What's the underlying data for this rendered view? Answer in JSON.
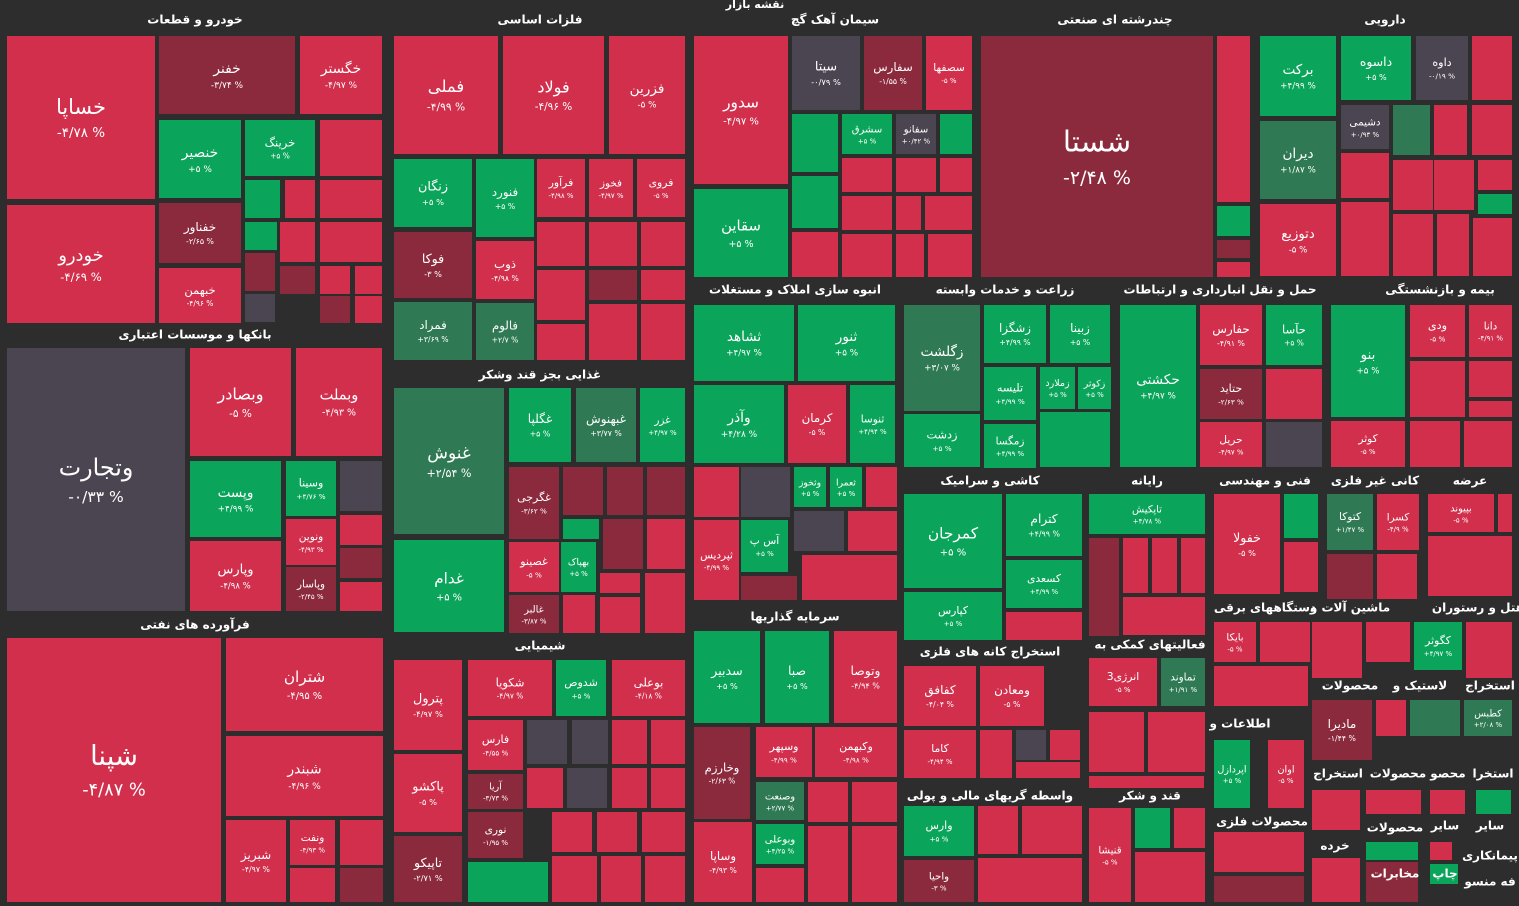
{
  "chart_data": {
    "type": "treemap",
    "title": "نقشه بازار",
    "groups": [
      {
        "name": "خودرو و قطعات",
        "labels": [
          "خساپا",
          "خودرو",
          "خفنر",
          "خگستر",
          "خنصیر",
          "خرینگ",
          "خفناور",
          "خبهمن"
        ],
        "values": [
          -4.78,
          -4.69,
          -3.74,
          -4.97,
          5,
          5,
          -2.65,
          -4.96
        ],
        "value_labels": [
          "-۴/۷۸ %",
          "-۴/۶۹ %",
          "-۳/۷۴ %",
          "-۴/۹۷ %",
          "+۵ %",
          "+۵ %",
          "-۲/۶۵ %",
          "-۴/۹۶ %"
        ]
      },
      {
        "name": "بانکها و موسسات اعتباری",
        "labels": [
          "وتجارت",
          "وبصادر",
          "وبملت",
          "وپست",
          "وسینا",
          "ونوین",
          "وپاسار",
          "وپارس"
        ],
        "values": [
          -0.33,
          -5,
          -4.93,
          4.99,
          4.76,
          -4.93,
          -2.45,
          -4.98
        ],
        "value_labels": [
          "-۰/۳۳ %",
          "-۵ %",
          "-۴/۹۳ %",
          "+۴/۹۹ %",
          "+۴/۷۶ %",
          "-۴/۹۳ %",
          "-۲/۴۵ %",
          "-۴/۹۸ %"
        ]
      },
      {
        "name": "فرآورده های نفتی",
        "labels": [
          "شپنا",
          "شتران",
          "شبندر",
          "شبریز",
          "ونفت"
        ],
        "values": [
          -4.87,
          -4.95,
          -4.96,
          -4.97,
          -4.93
        ],
        "value_labels": [
          "-۴/۸۷ %",
          "-۴/۹۵ %",
          "-۴/۹۶ %",
          "-۴/۹۷ %",
          "-۴/۹۳ %"
        ]
      },
      {
        "name": "فلزات اساسی",
        "labels": [
          "فملی",
          "فولاد",
          "فزرین",
          "زنگان",
          "فنورد",
          "فرآور",
          "فخوز",
          "فروی",
          "فوکا",
          "ذوب",
          "فمراد",
          "فالوم"
        ],
        "values": [
          -4.99,
          -4.96,
          -5,
          5,
          5,
          -4.98,
          -4.97,
          -5,
          -3,
          -4.98,
          3.69,
          2.7
        ],
        "value_labels": [
          "-۴/۹۹ %",
          "-۴/۹۶ %",
          "-۵ %",
          "+۵ %",
          "+۵ %",
          "-۴/۹۸ %",
          "-۴/۹۷ %",
          "-۵ %",
          "-۳ %",
          "-۴/۹۸ %",
          "+۳/۶۹ %",
          "+۲/۷ %"
        ]
      },
      {
        "name": "غذایی بجز قند وشکر",
        "labels": [
          "غنوش",
          "غدام",
          "غگلپا",
          "غبهنوش",
          "غزر",
          "غگرجی",
          "غصینو",
          "بهپاک",
          "غالبر"
        ],
        "values": [
          2.54,
          5,
          5,
          3.77,
          4.97,
          -3.62,
          -5,
          5,
          -3.87
        ],
        "value_labels": [
          "+۲/۵۴ %",
          "+۵ %",
          "+۵ %",
          "+۳/۷۷ %",
          "+۴/۹۷ %",
          "-۳/۶۲ %",
          "-۵ %",
          "+۵ %",
          "-۳/۸۷ %"
        ]
      },
      {
        "name": "شیمیایی",
        "labels": [
          "پترول",
          "پاکشو",
          "تاپیکو",
          "شکویا",
          "شدوص",
          "بوعلی",
          "فارس",
          "آریا",
          "نوری"
        ],
        "values": [
          -4.97,
          -5,
          -2.71,
          -4.97,
          5,
          -4.18,
          -4.55,
          -3.73,
          -1.95
        ],
        "value_labels": [
          "-۴/۹۷ %",
          "-۵ %",
          "-۲/۷۱ %",
          "-۴/۹۷ %",
          "+۵ %",
          "-۴/۱۸ %",
          "-۴/۵۵ %",
          "-۳/۷۳ %",
          "-۱/۹۵ %"
        ]
      },
      {
        "name": "سیمان آهک گچ",
        "labels": [
          "سدور",
          "سقاین",
          "سیتا",
          "سفارس",
          "سصفها",
          "سشرق",
          "سفانو"
        ],
        "values": [
          -4.97,
          5,
          -0.79,
          -1.55,
          -5,
          5,
          0.42
        ],
        "value_labels": [
          "-۴/۹۷ %",
          "+۵ %",
          "-۰/۷۹ %",
          "-۱/۵۵ %",
          "-۵ %",
          "+۵ %",
          "+۰/۴۲ %"
        ]
      },
      {
        "name": "چندرشته ای صنعتی",
        "labels": [
          "شستا"
        ],
        "values": [
          -2.48
        ],
        "value_labels": [
          "-۲/۴۸ %"
        ]
      },
      {
        "name": "دارویی",
        "labels": [
          "برکت",
          "داسوه",
          "داوه",
          "دیران",
          "دشیمی",
          "دتوزیع"
        ],
        "values": [
          4.99,
          5,
          -0.19,
          1.87,
          0.93,
          -5
        ],
        "value_labels": [
          "+۴/۹۹ %",
          "+۵ %",
          "-۰/۱۹ %",
          "+۱/۸۷ %",
          "+۰/۹۳ %",
          "-۵ %"
        ]
      },
      {
        "name": "انبوه سازی املاک و مستغلات",
        "labels": [
          "ثشاهد",
          "ثنور",
          "وآذر",
          "کرمان",
          "ثنوسا",
          "وثخوز",
          "ثعمرا",
          "آس پ",
          "ثپردیس"
        ],
        "values": [
          4.97,
          5,
          4.28,
          -5,
          4.94,
          5,
          5,
          5,
          -4.99
        ],
        "value_labels": [
          "+۴/۹۷ %",
          "+۵ %",
          "+۴/۲۸ %",
          "-۵ %",
          "+۴/۹۴ %",
          "+۵ %",
          "+۵ %",
          "+۵ %",
          "-۴/۹۹ %"
        ]
      },
      {
        "name": "زراعت و خدمات وابسته",
        "labels": [
          "زگلشت",
          "زشگزا",
          "زبینا",
          "زملارد",
          "زکوثر",
          "تلیسه",
          "زدشت",
          "زمگسا"
        ],
        "values": [
          3.07,
          4.99,
          5,
          5,
          5,
          4.99,
          5,
          4.99
        ],
        "value_labels": [
          "+۳/۰۷ %",
          "+۴/۹۹ %",
          "+۵ %",
          "+۵ %",
          "+۵ %",
          "+۴/۹۹ %",
          "+۵ %",
          "+۴/۹۹ %"
        ]
      },
      {
        "name": "حمل و نقل انبارداری و ارتباطات",
        "labels": [
          "حکشتی",
          "حفارس",
          "حآسا",
          "حتاید",
          "حریل"
        ],
        "values": [
          4.97,
          -4.91,
          5,
          -2.63,
          -4.97
        ],
        "value_labels": [
          "+۴/۹۷ %",
          "-۴/۹۱ %",
          "+۵ %",
          "-۲/۶۳ %",
          "-۴/۹۷ %"
        ]
      },
      {
        "name": "بیمه و بازنشستگی",
        "labels": [
          "بنو",
          "ودی",
          "دانا",
          "کوثر"
        ],
        "values": [
          5,
          -5,
          -4.91,
          -5
        ],
        "value_labels": [
          "+۵ %",
          "-۵ %",
          "-۴/۹۱ %",
          "-۵ %"
        ]
      },
      {
        "name": "کاشی و سرامیک",
        "labels": [
          "کمرجان",
          "کترام",
          "کسعدی",
          "کپارس"
        ],
        "values": [
          5,
          4.99,
          4.99,
          5
        ],
        "value_labels": [
          "+۵ %",
          "+۴/۹۹ %",
          "+۴/۹۹ %",
          "+۵ %"
        ]
      },
      {
        "name": "رایانه",
        "labels": [
          "تاپکیش"
        ],
        "values": [
          4.78
        ],
        "value_labels": [
          "+۴/۷۸ %"
        ]
      },
      {
        "name": "فنی و مهندسی",
        "labels": [
          "خفولا"
        ],
        "values": [
          -5
        ],
        "value_labels": [
          "-۵ %"
        ]
      },
      {
        "name": "کانی غیر فلزی",
        "labels": [
          "کتوکا",
          "کسرا"
        ],
        "values": [
          1.47,
          -4.9
        ],
        "value_labels": [
          "+۱/۴۷ %",
          "-۴/۹ %"
        ]
      },
      {
        "name": "عرضه",
        "labels": [
          "بپیوند"
        ],
        "values": [
          -5
        ],
        "value_labels": [
          "-۵ %"
        ]
      },
      {
        "name": "استخراج کانه های فلزی",
        "labels": [
          "کفافق",
          "ومعادن",
          "کاما"
        ],
        "values": [
          -4.04,
          -5,
          -4.94
        ],
        "value_labels": [
          "-۴/۰۴ %",
          "-۵ %",
          "-۴/۹۴ %"
        ]
      },
      {
        "name": "فعالیتهای کمکی به",
        "labels": [
          "انرژی3",
          "تماوند"
        ],
        "values": [
          -5,
          1.91
        ],
        "value_labels": [
          "-۵ %",
          "+۱/۹۱ %"
        ]
      },
      {
        "name": "سرمایه گذاریها",
        "labels": [
          "سدبیر",
          "صبا",
          "وتوصا",
          "وخارزم",
          "وسپهر",
          "وکبهمن",
          "وصنعت",
          "وبوعلی",
          "وساپا"
        ],
        "values": [
          5,
          5,
          -4.94,
          -2.63,
          -4.99,
          -4.98,
          2.77,
          4.25,
          -4.93
        ],
        "value_labels": [
          "+۵ %",
          "+۵ %",
          "-۴/۹۴ %",
          "-۲/۶۳ %",
          "-۴/۹۹ %",
          "-۴/۹۸ %",
          "+۲/۷۷ %",
          "+۴/۲۵ %",
          "-۴/۹۳ %"
        ]
      },
      {
        "name": "واسطه گریهای مالی و پولی",
        "labels": [
          "وارس",
          "واحیا"
        ],
        "values": [
          5,
          -3
        ],
        "value_labels": [
          "+۵ %",
          "-۳ %"
        ]
      },
      {
        "name": "قند و شکر",
        "labels": [
          "قنیشا"
        ],
        "values": [
          -5
        ],
        "value_labels": [
          "-۵ %"
        ]
      },
      {
        "name": "دستگاههای برقی",
        "labels": [
          "بایکا"
        ],
        "values": [
          -5
        ],
        "value_labels": [
          "-۵ %"
        ]
      },
      {
        "name": "اطلاعات و",
        "labels": [
          "اپردازل",
          "اوان"
        ],
        "values": [
          5,
          -5
        ],
        "value_labels": [
          "+۵ %",
          "-۵ %"
        ]
      },
      {
        "name": "ماشین آلات و"
      },
      {
        "name": "هتل و رستوران",
        "labels": [
          "کگوثر"
        ],
        "values": [
          4.97
        ],
        "value_labels": [
          "+۴/۹۷ %"
        ]
      },
      {
        "name": "استخراج",
        "labels": [
          "کطبس"
        ],
        "values": [
          2.08
        ],
        "value_labels": [
          "+۲/۰۸ %"
        ]
      },
      {
        "name": "لاستیک و"
      },
      {
        "name": "محصولات",
        "labels": [
          "مادیرا"
        ],
        "values": [
          -1.44
        ],
        "value_labels": [
          "-۱/۴۴ %"
        ]
      },
      {
        "name": "محصولات فلزی"
      },
      {
        "name": "استخراج"
      },
      {
        "name": "محصولات"
      },
      {
        "name": "محصو"
      },
      {
        "name": "استخرا"
      },
      {
        "name": "سایر"
      },
      {
        "name": "سایر"
      },
      {
        "name": "محصولات"
      },
      {
        "name": "خرده"
      },
      {
        "name": "پیمانکاری"
      },
      {
        "name": "چاپ"
      },
      {
        "name": "مخابرات"
      },
      {
        "name": "فه منسو"
      }
    ]
  }
}
